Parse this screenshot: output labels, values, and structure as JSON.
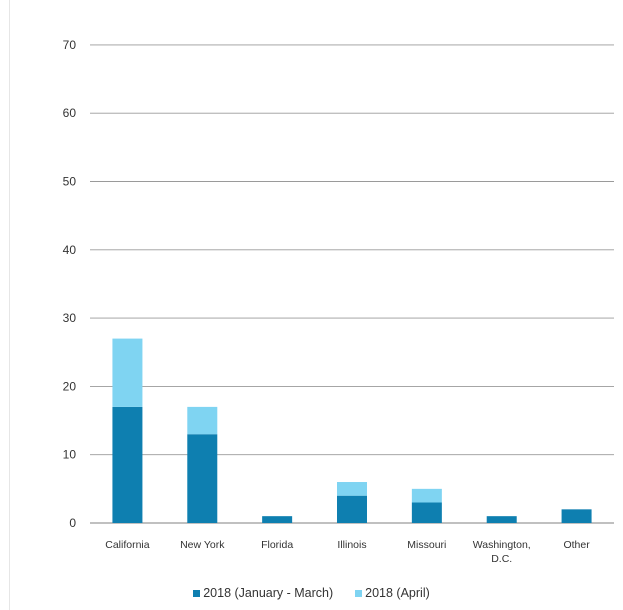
{
  "colors": {
    "series_1": "#0e7fb0",
    "series_2": "#7fd4f2",
    "gridline": "#9a9a9a",
    "text": "#333333"
  },
  "chart_data": {
    "type": "bar",
    "stacked": true,
    "categories": [
      "California",
      "New York",
      "Florida",
      "Illinois",
      "Missouri",
      "Washington,\nD.C.",
      "Other"
    ],
    "series": [
      {
        "name": "2018 (January - March)",
        "values": [
          17,
          13,
          1,
          4,
          3,
          1,
          2
        ]
      },
      {
        "name": "2018 (April)",
        "values": [
          10,
          4,
          0,
          2,
          2,
          0,
          0
        ]
      }
    ],
    "yticks": [
      0,
      10,
      20,
      30,
      40,
      50,
      60,
      70
    ],
    "ylim": [
      0,
      77
    ],
    "grid": true,
    "legend_position": "bottom",
    "title": "",
    "xlabel": "",
    "ylabel": ""
  }
}
